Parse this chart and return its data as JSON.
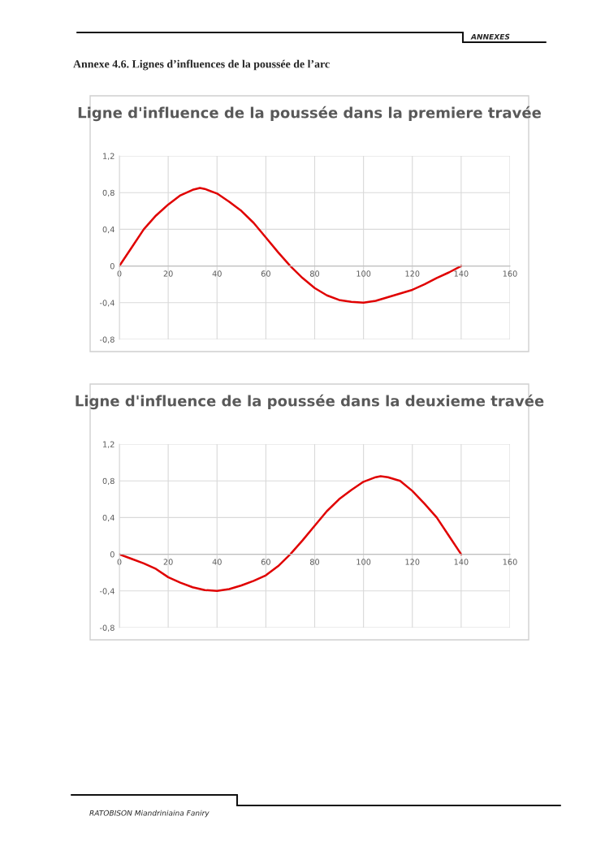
{
  "chart_data": [
    {
      "type": "line",
      "title": "Ligne d'influence de la poussée dans la premiere travée",
      "annotations": [
        "ANNEXES",
        "Annexe 4.6. Lignes d’influences de la poussée de l’arc"
      ],
      "x": [
        0,
        5,
        10,
        15,
        20,
        25,
        30,
        33,
        35,
        40,
        45,
        50,
        55,
        60,
        65,
        70,
        75,
        80,
        85,
        90,
        95,
        100,
        105,
        110,
        115,
        120,
        125,
        130,
        135,
        140
      ],
      "series": [
        {
          "color": "#e00000",
          "values": [
            0,
            0.2,
            0.4,
            0.55,
            0.67,
            0.77,
            0.83,
            0.85,
            0.84,
            0.79,
            0.7,
            0.6,
            0.47,
            0.31,
            0.15,
            0.0,
            -0.13,
            -0.24,
            -0.32,
            -0.37,
            -0.39,
            -0.4,
            -0.38,
            -0.34,
            -0.3,
            -0.26,
            -0.2,
            -0.13,
            -0.07,
            0
          ]
        }
      ],
      "xlim": [
        0,
        160
      ],
      "xticks": [
        0,
        20,
        40,
        60,
        80,
        100,
        120,
        140,
        160
      ],
      "ylim": [
        -0.8,
        1.2
      ],
      "yticks": [
        {
          "value": -0.8,
          "label": "-0,8"
        },
        {
          "value": -0.4,
          "label": "-0,4"
        },
        0,
        {
          "value": 0.4,
          "label": "0,4"
        },
        {
          "value": 0.8,
          "label": "0,8"
        },
        {
          "value": 1.2,
          "label": "1,2"
        }
      ],
      "grid": true,
      "legend": false,
      "marker": "none",
      "line_style": "solid"
    },
    {
      "type": "line",
      "title": "Ligne d'influence de la poussée dans la deuxieme travée",
      "annotations": [
        "RATOBISON Miandriniaina Faniry"
      ],
      "x": [
        0,
        5,
        10,
        15,
        20,
        25,
        30,
        35,
        40,
        45,
        50,
        55,
        60,
        65,
        70,
        75,
        80,
        85,
        90,
        95,
        100,
        105,
        107,
        110,
        115,
        120,
        125,
        130,
        135,
        140
      ],
      "series": [
        {
          "color": "#e00000",
          "values": [
            0,
            -0.05,
            -0.1,
            -0.16,
            -0.25,
            -0.31,
            -0.36,
            -0.39,
            -0.4,
            -0.38,
            -0.34,
            -0.29,
            -0.23,
            -0.13,
            0.0,
            0.15,
            0.31,
            0.47,
            0.6,
            0.7,
            0.79,
            0.84,
            0.85,
            0.84,
            0.8,
            0.69,
            0.55,
            0.4,
            0.2,
            0
          ]
        }
      ],
      "xlim": [
        0,
        160
      ],
      "xticks": [
        0,
        20,
        40,
        60,
        80,
        100,
        120,
        140,
        160
      ],
      "ylim": [
        -0.8,
        1.2
      ],
      "yticks": [
        {
          "value": -0.8,
          "label": "-0,8"
        },
        {
          "value": -0.4,
          "label": "-0,4"
        },
        0,
        {
          "value": 0.4,
          "label": "0,4"
        },
        {
          "value": 0.8,
          "label": "0,8"
        },
        {
          "value": 1.2,
          "label": "1,2"
        }
      ],
      "grid": true,
      "legend": false,
      "marker": "none",
      "line_style": "solid"
    }
  ]
}
